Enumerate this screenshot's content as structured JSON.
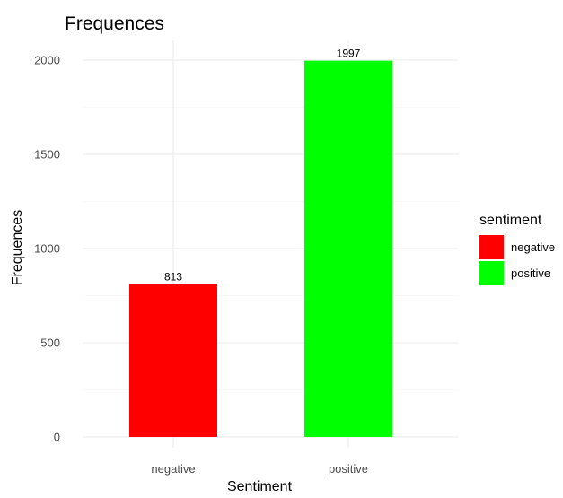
{
  "chart_data": {
    "type": "bar",
    "title": "Frequences",
    "xlabel": "Sentiment",
    "ylabel": "Frequences",
    "categories": [
      "negative",
      "positive"
    ],
    "values": [
      813,
      1997
    ],
    "data_labels": [
      "813",
      "1997"
    ],
    "colors": [
      "#ff0000",
      "#00ff00"
    ],
    "ylim": [
      0,
      2000
    ],
    "y_ticks": [
      0,
      500,
      1000,
      1500,
      2000
    ],
    "y_tick_labels": [
      "0",
      "500",
      "1000",
      "1500",
      "2000"
    ],
    "grid": true,
    "legend": {
      "title": "sentiment",
      "position": "right",
      "entries": [
        "negative",
        "positive"
      ]
    }
  }
}
